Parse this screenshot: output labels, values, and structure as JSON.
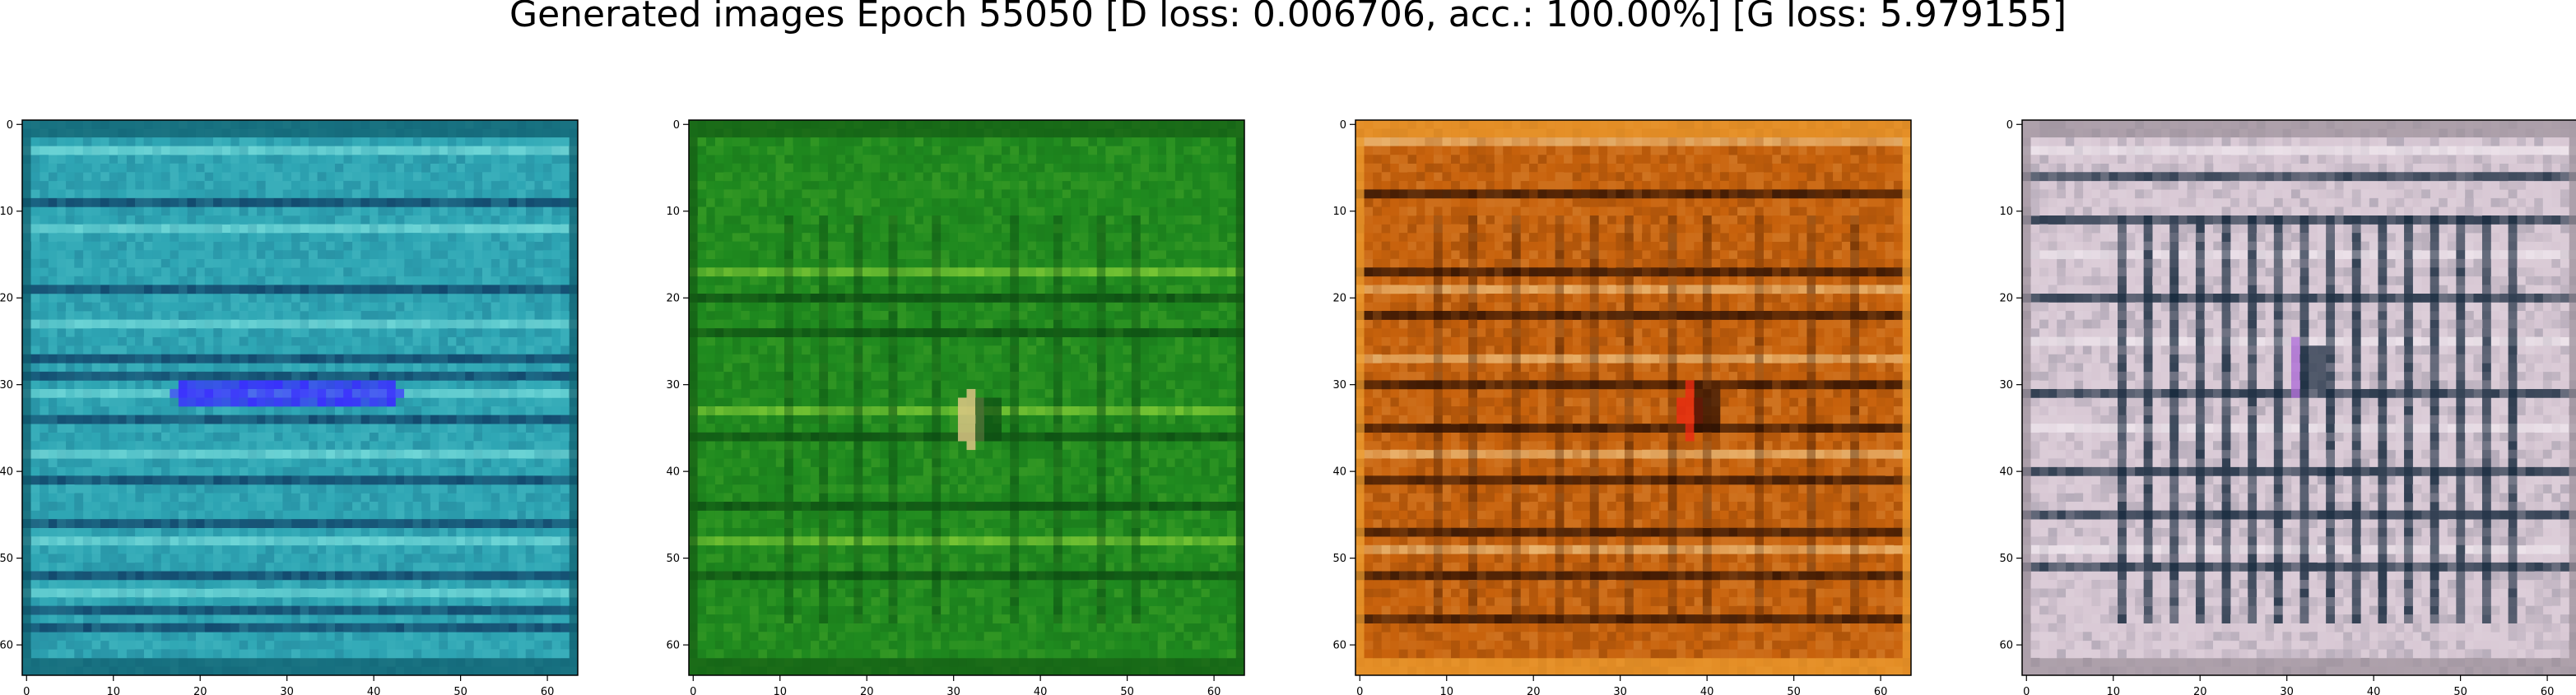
{
  "figure": {
    "title": "Generated images Epoch 55050 [D loss: 0.006706, acc.: 100.00%] [G loss: 5.979155]"
  },
  "chart_data": [
    {
      "type": "heatmap",
      "id": "sample-1",
      "title": "",
      "xlabel": "",
      "ylabel": "",
      "xlim": [
        0,
        63
      ],
      "ylim": [
        63,
        0
      ],
      "xticks": [
        0,
        10,
        20,
        30,
        40,
        50,
        60
      ],
      "yticks": [
        0,
        10,
        20,
        30,
        40,
        50,
        60
      ],
      "grid": false,
      "palette": {
        "base": "#2ea6b4",
        "light_stripe": "#7fe3e0",
        "dark_stripe": "#0e3b63",
        "accent": "#3a2cff",
        "frame": "#0d5a6a"
      }
    },
    {
      "type": "heatmap",
      "id": "sample-2",
      "title": "",
      "xlabel": "",
      "ylabel": "",
      "xlim": [
        0,
        63
      ],
      "ylim": [
        63,
        0
      ],
      "xticks": [
        0,
        10,
        20,
        30,
        40,
        50,
        60
      ],
      "yticks": [
        0,
        10,
        20,
        30,
        40,
        50,
        60
      ],
      "grid": false,
      "palette": {
        "base": "#1f8a1f",
        "light_stripe": "#8fd63a",
        "dark_stripe": "#0c4a12",
        "accent": "#e8c98a",
        "frame": "#145c14"
      }
    },
    {
      "type": "heatmap",
      "id": "sample-3",
      "title": "",
      "xlabel": "",
      "ylabel": "",
      "xlim": [
        0,
        63
      ],
      "ylim": [
        63,
        0
      ],
      "xticks": [
        0,
        10,
        20,
        30,
        40,
        50,
        60
      ],
      "yticks": [
        0,
        10,
        20,
        30,
        40,
        50,
        60
      ],
      "grid": false,
      "palette": {
        "base": "#c8620c",
        "light_stripe": "#f3c886",
        "dark_stripe": "#2a0e02",
        "accent": "#e82810",
        "frame": "#f0a030"
      }
    },
    {
      "type": "heatmap",
      "id": "sample-4",
      "title": "",
      "xlabel": "",
      "ylabel": "",
      "xlim": [
        0,
        63
      ],
      "ylim": [
        63,
        0
      ],
      "xticks": [
        0,
        10,
        20,
        30,
        40,
        50,
        60
      ],
      "yticks": [
        0,
        10,
        20,
        30,
        40,
        50,
        60
      ],
      "grid": false,
      "palette": {
        "base": "#d8c8d4",
        "light_stripe": "#f2eaf0",
        "dark_stripe": "#15283c",
        "accent": "#b070d8",
        "frame": "#9a8e98"
      }
    }
  ]
}
